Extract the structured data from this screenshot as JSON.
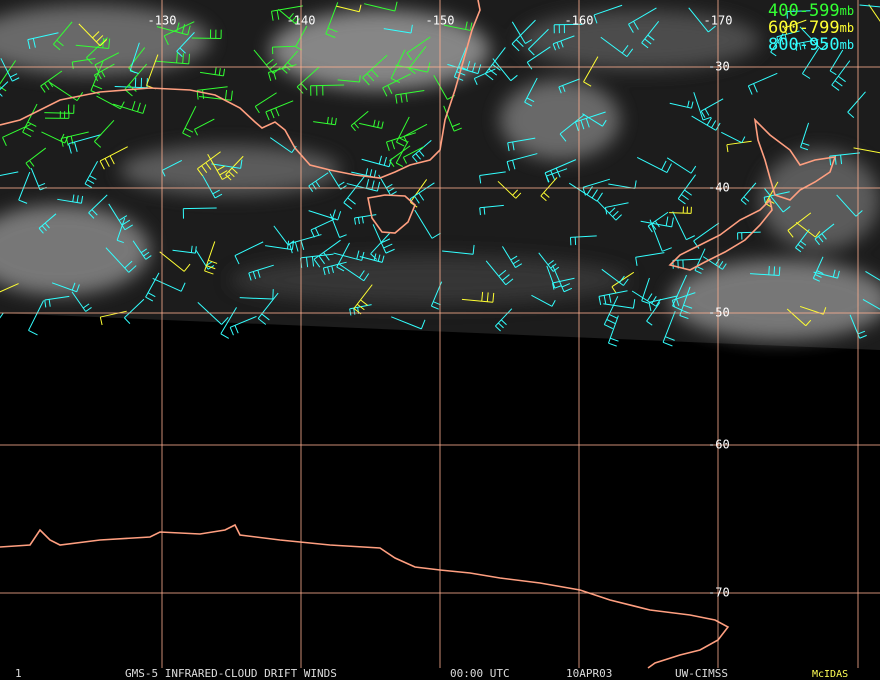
{
  "map": {
    "longitudes": [
      -130,
      -140,
      -150,
      -160,
      -170
    ],
    "latitudes": [
      -30,
      -40,
      -50,
      -60,
      -70
    ],
    "legend": [
      {
        "range": "400-599",
        "unit": "mb",
        "color": "#33ff33"
      },
      {
        "range": "600-799",
        "unit": "mb",
        "color": "#ffff33"
      },
      {
        "range": "800-950",
        "unit": "mb",
        "color": "#33ffff"
      }
    ],
    "footer": {
      "frame": "1",
      "title": "GMS-5 INFRARED-CLOUD DRIFT WINDS",
      "time": "00:00 UTC",
      "date": "10APR03",
      "source": "UW-CIMSS",
      "software": "McIDAS"
    }
  }
}
